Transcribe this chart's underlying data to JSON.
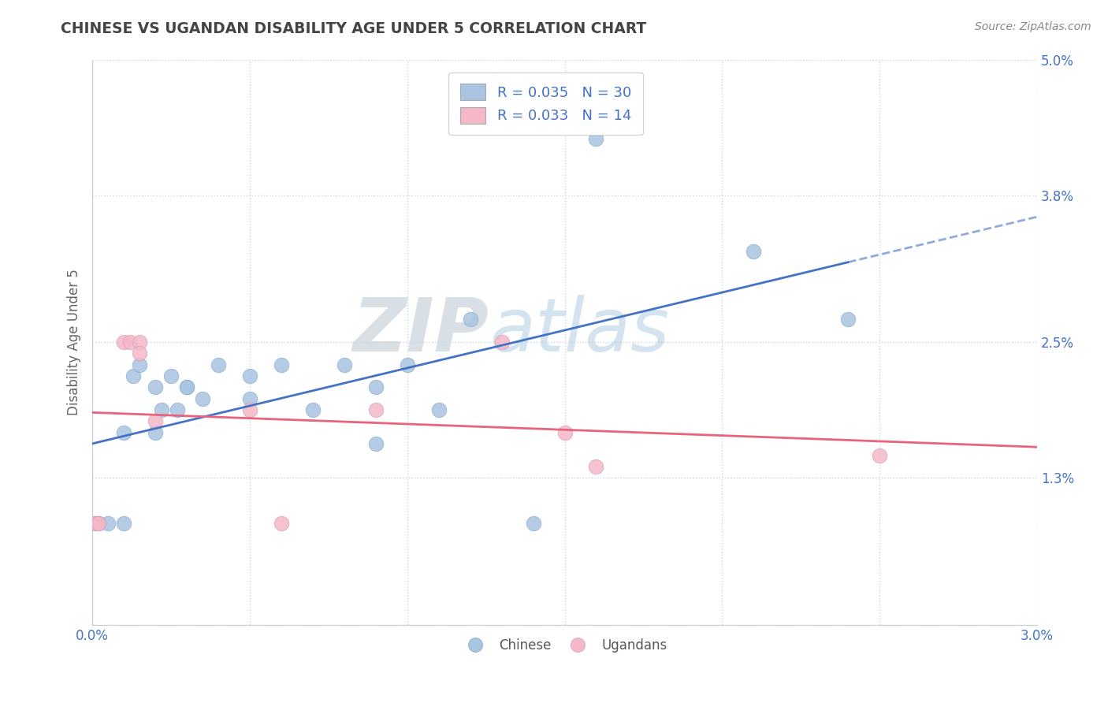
{
  "title": "CHINESE VS UGANDAN DISABILITY AGE UNDER 5 CORRELATION CHART",
  "source_text": "Source: ZipAtlas.com",
  "ylabel": "Disability Age Under 5",
  "xlim": [
    0.0,
    0.03
  ],
  "ylim": [
    0.0,
    0.05
  ],
  "xticks": [
    0.0,
    0.005,
    0.01,
    0.015,
    0.02,
    0.025,
    0.03
  ],
  "xticklabels": [
    "0.0%",
    "",
    "",
    "",
    "",
    "",
    "3.0%"
  ],
  "yticks": [
    0.0,
    0.013,
    0.025,
    0.038,
    0.05
  ],
  "yticklabels": [
    "",
    "1.3%",
    "2.5%",
    "3.8%",
    "5.0%"
  ],
  "chinese_R": 0.035,
  "chinese_N": 30,
  "ugandan_R": 0.033,
  "ugandan_N": 14,
  "chinese_color": "#a8c4e0",
  "ugandan_color": "#f4b8c8",
  "chinese_line_color": "#4472c4",
  "ugandan_line_color": "#e8637d",
  "background_color": "#ffffff",
  "grid_color": "#c8d4e8",
  "watermark_zip": "ZIP",
  "watermark_atlas": "atlas",
  "legend_color": "#4472c4",
  "title_color": "#444444",
  "source_color": "#888888",
  "tick_color": "#4472c4",
  "chinese_scatter_x": [
    0.0001,
    0.0002,
    0.0005,
    0.001,
    0.001,
    0.0013,
    0.0015,
    0.002,
    0.002,
    0.0022,
    0.0025,
    0.0027,
    0.003,
    0.003,
    0.0035,
    0.004,
    0.005,
    0.005,
    0.006,
    0.007,
    0.008,
    0.009,
    0.009,
    0.01,
    0.011,
    0.012,
    0.014,
    0.016,
    0.021,
    0.024
  ],
  "chinese_scatter_y": [
    0.009,
    0.009,
    0.009,
    0.017,
    0.009,
    0.022,
    0.023,
    0.021,
    0.017,
    0.019,
    0.022,
    0.019,
    0.021,
    0.021,
    0.02,
    0.023,
    0.022,
    0.02,
    0.023,
    0.019,
    0.023,
    0.021,
    0.016,
    0.023,
    0.019,
    0.027,
    0.009,
    0.043,
    0.033,
    0.027
  ],
  "ugandan_scatter_x": [
    0.0001,
    0.0002,
    0.001,
    0.0012,
    0.0015,
    0.0015,
    0.002,
    0.005,
    0.006,
    0.009,
    0.013,
    0.015,
    0.016,
    0.025
  ],
  "ugandan_scatter_y": [
    0.009,
    0.009,
    0.025,
    0.025,
    0.025,
    0.024,
    0.018,
    0.019,
    0.009,
    0.019,
    0.025,
    0.017,
    0.014,
    0.015
  ]
}
